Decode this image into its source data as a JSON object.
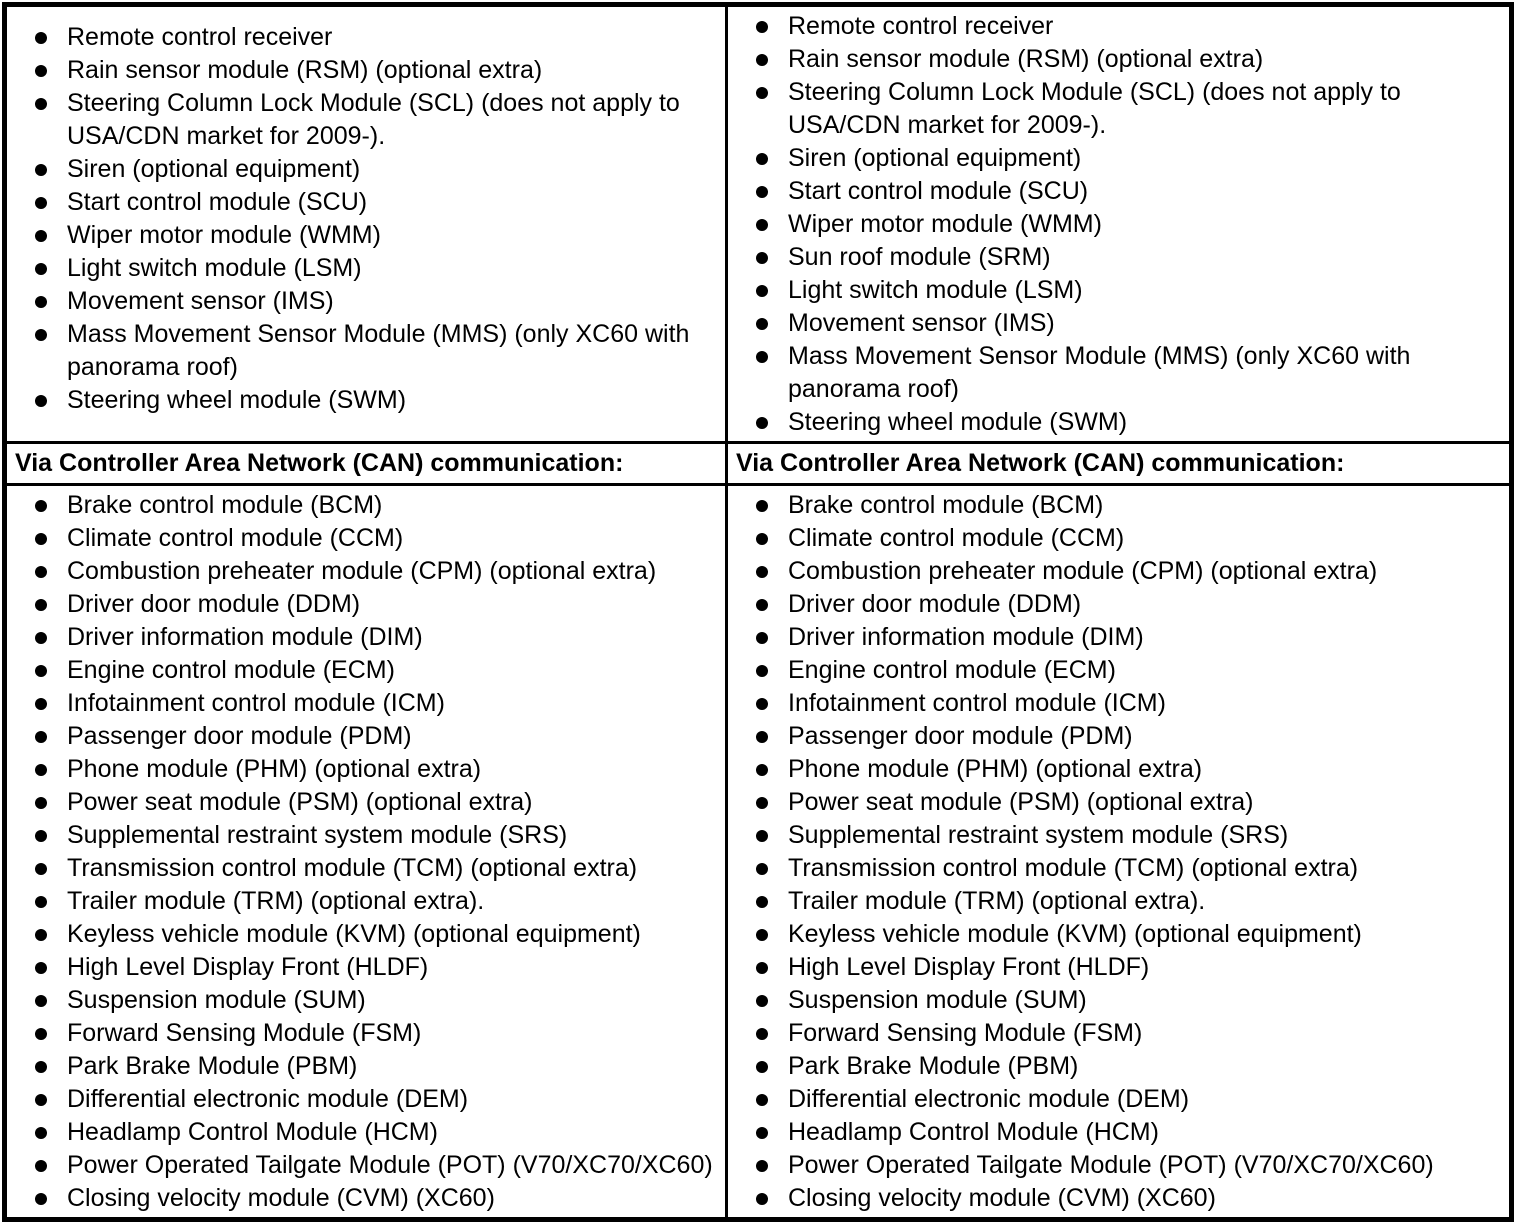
{
  "colors": {
    "text": "#000000",
    "border": "#000000",
    "background": "#ffffff"
  },
  "table": {
    "columns": [
      {
        "top_items": [
          "Remote control receiver",
          "Rain sensor module (RSM) (optional extra)",
          "Steering Column Lock Module (SCL) (does not apply to USA/CDN market for 2009-).",
          "Siren (optional equipment)",
          "Start control module (SCU)",
          "Wiper motor module (WMM)",
          "Light switch module (LSM)",
          "Movement sensor (IMS)",
          "Mass Movement Sensor Module (MMS) (only XC60 with panorama roof)",
          "Steering wheel module (SWM)"
        ],
        "can_header": "Via Controller Area Network (CAN) communication:",
        "can_items": [
          "Brake control module (BCM)",
          "Climate control module (CCM)",
          "Combustion preheater module (CPM) (optional extra)",
          "Driver door module (DDM)",
          "Driver information module (DIM)",
          "Engine control module (ECM)",
          "Infotainment control module (ICM)",
          "Passenger door module (PDM)",
          "Phone module (PHM) (optional extra)",
          "Power seat module (PSM) (optional extra)",
          "Supplemental restraint system module (SRS)",
          "Transmission control module (TCM) (optional extra)",
          "Trailer module (TRM) (optional extra).",
          "Keyless vehicle module (KVM) (optional equipment)",
          "High Level Display Front (HLDF)",
          "Suspension module (SUM)",
          "Forward Sensing Module (FSM)",
          "Park Brake Module (PBM)",
          "Differential electronic module (DEM)",
          "Headlamp Control Module (HCM)",
          "Power Operated Tailgate Module (POT) (V70/XC70/XC60)",
          "Closing velocity module (CVM) (XC60)"
        ]
      },
      {
        "top_items": [
          "Remote control receiver",
          "Rain sensor module (RSM) (optional extra)",
          "Steering Column Lock Module (SCL) (does not apply to USA/CDN market for 2009-).",
          "Siren (optional equipment)",
          "Start control module (SCU)",
          "Wiper motor module (WMM)",
          "Sun roof module (SRM)",
          "Light switch module (LSM)",
          "Movement sensor (IMS)",
          "Mass Movement Sensor Module (MMS) (only XC60 with panorama roof)",
          "Steering wheel module (SWM)"
        ],
        "can_header": "Via Controller Area Network (CAN) communication:",
        "can_items": [
          "Brake control module (BCM)",
          "Climate control module (CCM)",
          "Combustion preheater module (CPM) (optional extra)",
          "Driver door module (DDM)",
          "Driver information module (DIM)",
          "Engine control module (ECM)",
          "Infotainment control module (ICM)",
          "Passenger door module (PDM)",
          "Phone module (PHM) (optional extra)",
          "Power seat module (PSM) (optional extra)",
          "Supplemental restraint system module (SRS)",
          "Transmission control module (TCM) (optional extra)",
          "Trailer module (TRM) (optional extra).",
          "Keyless vehicle module (KVM) (optional equipment)",
          "High Level Display Front (HLDF)",
          "Suspension module (SUM)",
          "Forward Sensing Module (FSM)",
          "Park Brake Module (PBM)",
          "Differential electronic module (DEM)",
          "Headlamp Control Module (HCM)",
          "Power Operated Tailgate Module (POT) (V70/XC70/XC60)",
          "Closing velocity module (CVM) (XC60)"
        ]
      }
    ]
  }
}
